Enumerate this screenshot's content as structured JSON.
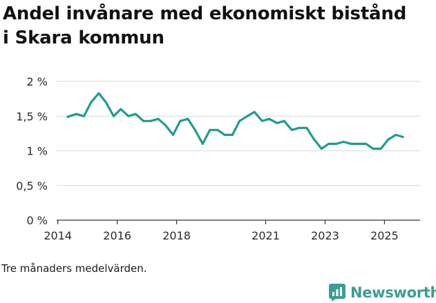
{
  "brand": {
    "name": "Newsworthy",
    "color": "#3c9d92"
  },
  "footnote": "Tre månaders medelvärden.",
  "chart_data": {
    "type": "line",
    "title": "Andel invånare med ekonomiskt bistånd i Skara kommun",
    "xlabel": "",
    "ylabel": "",
    "x_ticks": [
      2014,
      2016,
      2018,
      2021,
      2023,
      2025
    ],
    "y_ticks": [
      {
        "value": 0,
        "label": "0 %"
      },
      {
        "value": 0.5,
        "label": "0,5 %"
      },
      {
        "value": 1,
        "label": "1 %"
      },
      {
        "value": 1.5,
        "label": "1,5 %"
      },
      {
        "value": 2,
        "label": "2 %"
      }
    ],
    "xlim": [
      2013.96,
      2026.2
    ],
    "ylim": [
      0,
      2
    ],
    "grid": true,
    "line_color": "#1f9c8f",
    "series": [
      {
        "x": [
          2014.33,
          2014.62,
          2014.88,
          2015.12,
          2015.38,
          2015.62,
          2015.88,
          2016.12,
          2016.38,
          2016.62,
          2016.88,
          2017.12,
          2017.38,
          2017.62,
          2017.88,
          2018.12,
          2018.38,
          2018.62,
          2018.88,
          2019.12,
          2019.38,
          2019.62,
          2019.88,
          2020.12,
          2020.38,
          2020.62,
          2020.88,
          2021.12,
          2021.38,
          2021.62,
          2021.88,
          2022.12,
          2022.38,
          2022.62,
          2022.88,
          2023.12,
          2023.38,
          2023.62,
          2023.88,
          2024.12,
          2024.38,
          2024.62,
          2024.88,
          2025.12,
          2025.38,
          2025.62
        ],
        "y": [
          1.49,
          1.53,
          1.5,
          1.7,
          1.83,
          1.7,
          1.5,
          1.6,
          1.5,
          1.53,
          1.43,
          1.43,
          1.46,
          1.37,
          1.23,
          1.43,
          1.46,
          1.3,
          1.1,
          1.3,
          1.3,
          1.23,
          1.23,
          1.43,
          1.5,
          1.56,
          1.43,
          1.46,
          1.4,
          1.43,
          1.3,
          1.33,
          1.33,
          1.17,
          1.03,
          1.1,
          1.1,
          1.13,
          1.1,
          1.1,
          1.1,
          1.03,
          1.03,
          1.16,
          1.23,
          1.2
        ]
      }
    ]
  }
}
